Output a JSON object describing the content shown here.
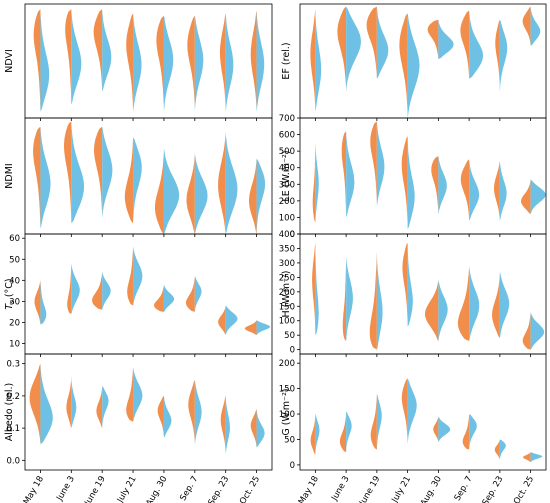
{
  "chart_data": [
    {
      "id": "ndvi",
      "type": "violin-split",
      "ylabel": "NDVI",
      "ylim": [
        0.1,
        0.97
      ],
      "yticks": [],
      "col": 0,
      "row": 0,
      "categories": [
        "May 18",
        "June 3",
        "June 19",
        "July 21",
        "Aug. 30",
        "Sep. 7",
        "Sep. 23",
        "Oct. 25"
      ],
      "series": [
        {
          "color": "#f28e4c",
          "modes": [
            0.8,
            0.85,
            0.8,
            0.7,
            0.75,
            0.7,
            0.62,
            0.6
          ],
          "min": [
            0.15,
            0.2,
            0.3,
            0.15,
            0.15,
            0.15,
            0.15,
            0.15
          ],
          "max": [
            0.93,
            0.93,
            0.93,
            0.9,
            0.88,
            0.88,
            0.9,
            0.92
          ],
          "width": [
            0.5,
            0.5,
            0.6,
            0.45,
            0.55,
            0.5,
            0.35,
            0.35
          ]
        },
        {
          "color": "#6ec1e4",
          "modes": [
            0.4,
            0.5,
            0.55,
            0.5,
            0.55,
            0.55,
            0.5,
            0.5
          ],
          "min": [
            0.15,
            0.2,
            0.3,
            0.15,
            0.15,
            0.15,
            0.15,
            0.15
          ],
          "max": [
            0.93,
            0.93,
            0.93,
            0.9,
            0.88,
            0.88,
            0.9,
            0.92
          ],
          "width": [
            0.55,
            0.6,
            0.55,
            0.5,
            0.55,
            0.5,
            0.45,
            0.45
          ]
        }
      ]
    },
    {
      "id": "ef",
      "type": "violin-split",
      "ylabel": "EF (rel.)",
      "ylim": [
        0.1,
        0.97
      ],
      "yticks": [],
      "col": 1,
      "row": 0,
      "categories": [
        "May 18",
        "June 3",
        "June 19",
        "July 21",
        "Aug. 30",
        "Sep. 7",
        "Sep. 23",
        "Oct. 25"
      ],
      "series": [
        {
          "color": "#f28e4c",
          "modes": [
            0.6,
            0.8,
            0.85,
            0.7,
            0.8,
            0.8,
            0.7,
            0.85
          ],
          "min": [
            0.15,
            0.3,
            0.4,
            0.1,
            0.55,
            0.4,
            0.3,
            0.65
          ],
          "max": [
            0.93,
            0.95,
            0.95,
            0.9,
            0.85,
            0.92,
            0.85,
            0.95
          ],
          "width": [
            0.3,
            0.6,
            0.75,
            0.55,
            0.8,
            0.6,
            0.3,
            0.5
          ]
        },
        {
          "color": "#6ec1e4",
          "modes": [
            0.45,
            0.7,
            0.6,
            0.5,
            0.65,
            0.55,
            0.65,
            0.75
          ],
          "min": [
            0.15,
            0.3,
            0.4,
            0.1,
            0.55,
            0.4,
            0.3,
            0.65
          ],
          "max": [
            0.93,
            0.95,
            0.95,
            0.9,
            0.85,
            0.92,
            0.85,
            0.95
          ],
          "width": [
            0.35,
            0.9,
            0.7,
            0.7,
            0.95,
            0.9,
            0.45,
            0.6
          ]
        }
      ]
    },
    {
      "id": "ndmi",
      "type": "violin-split",
      "ylabel": "NDMI",
      "ylim": [
        -0.3,
        0.78
      ],
      "yticks": [],
      "col": 0,
      "row": 1,
      "categories": [
        "May 18",
        "June 3",
        "June 19",
        "July 21",
        "Aug. 30",
        "Sep. 7",
        "Sep. 23",
        "Oct. 25"
      ],
      "series": [
        {
          "color": "#f28e4c",
          "modes": [
            0.55,
            0.6,
            0.55,
            0.0,
            -0.1,
            0.0,
            0.15,
            0.0
          ],
          "min": [
            -0.25,
            -0.2,
            -0.15,
            -0.2,
            -0.3,
            -0.3,
            -0.3,
            -0.3
          ],
          "max": [
            0.7,
            0.75,
            0.7,
            0.6,
            0.5,
            0.45,
            0.65,
            0.4
          ],
          "width": [
            0.55,
            0.55,
            0.6,
            0.55,
            0.6,
            0.5,
            0.45,
            0.45
          ]
        },
        {
          "color": "#6ec1e4",
          "modes": [
            0.15,
            0.1,
            0.3,
            0.35,
            0.05,
            0.05,
            0.1,
            0.2
          ],
          "min": [
            -0.25,
            -0.2,
            -0.15,
            -0.2,
            -0.3,
            -0.3,
            -0.3,
            -0.3
          ],
          "max": [
            0.7,
            0.75,
            0.7,
            0.6,
            0.5,
            0.45,
            0.65,
            0.4
          ],
          "width": [
            0.6,
            0.8,
            0.6,
            0.55,
            0.9,
            0.75,
            0.7,
            0.55
          ]
        }
      ]
    },
    {
      "id": "le",
      "type": "violin-split",
      "ylabel": "LE (W.m⁻²)",
      "ylim": [
        0,
        700
      ],
      "yticks": [
        0,
        100,
        200,
        300,
        400,
        500,
        600,
        700
      ],
      "col": 1,
      "row": 1,
      "categories": [
        "May 18",
        "June 3",
        "June 19",
        "July 21",
        "Aug. 30",
        "Sep. 7",
        "Sep. 23",
        "Oct. 25"
      ],
      "series": [
        {
          "color": "#f28e4c",
          "modes": [
            150,
            550,
            600,
            450,
            420,
            350,
            280,
            190
          ],
          "min": [
            70,
            100,
            170,
            30,
            120,
            80,
            80,
            120
          ],
          "max": [
            550,
            620,
            680,
            590,
            470,
            450,
            440,
            330
          ],
          "width": [
            0.2,
            0.35,
            0.5,
            0.4,
            0.55,
            0.55,
            0.35,
            0.6
          ]
        },
        {
          "color": "#6ec1e4",
          "modes": [
            300,
            300,
            400,
            200,
            290,
            230,
            240,
            240
          ],
          "min": [
            70,
            100,
            170,
            30,
            120,
            80,
            80,
            120
          ],
          "max": [
            550,
            620,
            680,
            590,
            470,
            450,
            440,
            330
          ],
          "width": [
            0.2,
            0.5,
            0.45,
            0.45,
            0.5,
            0.6,
            0.4,
            0.9
          ]
        }
      ]
    },
    {
      "id": "ts",
      "type": "violin-split",
      "ylabel": "Ts (°C)",
      "ylabel_main": "T",
      "ylabel_sub": "s",
      "ylabel_rest": " (°C)",
      "ylim": [
        5,
        62
      ],
      "yticks": [
        10,
        20,
        30,
        40,
        50,
        60
      ],
      "col": 0,
      "row": 2,
      "categories": [
        "May 18",
        "June 3",
        "June 19",
        "July 21",
        "Aug. 30",
        "Sep. 7",
        "Sep. 23",
        "Oct. 25"
      ],
      "series": [
        {
          "color": "#f28e4c",
          "modes": [
            30,
            26,
            29,
            32,
            27,
            28,
            20,
            17
          ],
          "min": [
            19,
            24,
            26,
            28,
            25,
            25,
            14,
            14
          ],
          "max": [
            40,
            48,
            44,
            56,
            38,
            42,
            28,
            21
          ],
          "width": [
            0.35,
            0.35,
            0.75,
            0.45,
            0.75,
            0.65,
            0.45,
            0.7
          ]
        },
        {
          "color": "#6ec1e4",
          "modes": [
            22,
            35,
            35,
            42,
            31,
            35,
            22,
            18
          ],
          "min": [
            19,
            24,
            26,
            28,
            25,
            25,
            14,
            14
          ],
          "max": [
            40,
            48,
            44,
            56,
            38,
            42,
            28,
            21
          ],
          "width": [
            0.45,
            0.5,
            0.5,
            0.55,
            0.6,
            0.4,
            0.7,
            0.8
          ]
        }
      ]
    },
    {
      "id": "h",
      "type": "violin-split",
      "ylabel": "H (W.m⁻²)",
      "ylim": [
        -15,
        400
      ],
      "yticks": [
        0,
        50,
        100,
        150,
        200,
        250,
        300,
        350,
        400
      ],
      "col": 1,
      "row": 2,
      "categories": [
        "May 18",
        "June 3",
        "June 19",
        "July 21",
        "Aug. 30",
        "Sep. 7",
        "Sep. 23",
        "Oct. 25"
      ],
      "series": [
        {
          "color": "#f28e4c",
          "modes": [
            250,
            50,
            20,
            300,
            120,
            70,
            110,
            20
          ],
          "min": [
            50,
            30,
            0,
            80,
            30,
            30,
            40,
            0
          ],
          "max": [
            370,
            320,
            340,
            370,
            240,
            290,
            270,
            130
          ],
          "width": [
            0.2,
            0.3,
            0.65,
            0.35,
            0.8,
            0.85,
            0.5,
            0.6
          ]
        },
        {
          "color": "#6ec1e4",
          "modes": [
            100,
            180,
            120,
            150,
            140,
            150,
            160,
            60
          ],
          "min": [
            50,
            30,
            0,
            80,
            30,
            30,
            40,
            0
          ],
          "max": [
            370,
            320,
            340,
            370,
            240,
            290,
            270,
            130
          ],
          "width": [
            0.25,
            0.4,
            0.35,
            0.35,
            0.55,
            0.6,
            0.55,
            0.8
          ]
        }
      ]
    },
    {
      "id": "albedo",
      "type": "violin-split",
      "ylabel": "Albedo (rel.)",
      "ylim": [
        -0.03,
        0.33
      ],
      "yticks": [
        0.0,
        0.1,
        0.2,
        0.3
      ],
      "col": 0,
      "row": 3,
      "categories": [
        "May 18",
        "June 3",
        "June 19",
        "July 21",
        "Aug. 30",
        "Sep. 7",
        "Sep. 23",
        "Oct. 25"
      ],
      "series": [
        {
          "color": "#f28e4c",
          "modes": [
            0.2,
            0.16,
            0.15,
            0.14,
            0.16,
            0.18,
            0.13,
            0.11
          ],
          "min": [
            0.05,
            0.1,
            0.1,
            0.12,
            0.07,
            0.05,
            0.02,
            0.04
          ],
          "max": [
            0.3,
            0.26,
            0.23,
            0.29,
            0.2,
            0.25,
            0.2,
            0.16
          ],
          "width": [
            0.65,
            0.3,
            0.35,
            0.55,
            0.4,
            0.4,
            0.3,
            0.35
          ]
        },
        {
          "color": "#6ec1e4",
          "modes": [
            0.12,
            0.16,
            0.19,
            0.2,
            0.12,
            0.15,
            0.1,
            0.08
          ],
          "min": [
            0.05,
            0.1,
            0.1,
            0.12,
            0.07,
            0.05,
            0.02,
            0.04
          ],
          "max": [
            0.3,
            0.26,
            0.23,
            0.29,
            0.2,
            0.25,
            0.2,
            0.16
          ],
          "width": [
            0.8,
            0.3,
            0.4,
            0.55,
            0.45,
            0.4,
            0.25,
            0.5
          ]
        }
      ]
    },
    {
      "id": "g",
      "type": "violin-split",
      "ylabel": "G (W.m⁻²)",
      "ylim": [
        -10,
        218
      ],
      "yticks": [
        0,
        50,
        100,
        150,
        200
      ],
      "col": 1,
      "row": 3,
      "categories": [
        "May 18",
        "June 3",
        "June 19",
        "July 21",
        "Aug. 30",
        "Sep. 7",
        "Sep. 23",
        "Oct. 25"
      ],
      "series": [
        {
          "color": "#f28e4c",
          "modes": [
            45,
            40,
            50,
            140,
            70,
            40,
            30,
            15
          ],
          "min": [
            20,
            25,
            30,
            40,
            45,
            30,
            10,
            5
          ],
          "max": [
            100,
            105,
            140,
            170,
            95,
            100,
            50,
            25
          ],
          "width": [
            0.3,
            0.45,
            0.45,
            0.4,
            0.3,
            0.5,
            0.3,
            0.45
          ]
        },
        {
          "color": "#6ec1e4",
          "modes": [
            70,
            80,
            100,
            120,
            70,
            80,
            40,
            17
          ],
          "min": [
            20,
            25,
            30,
            40,
            45,
            30,
            10,
            5
          ],
          "max": [
            100,
            105,
            140,
            170,
            95,
            100,
            50,
            25
          ],
          "width": [
            0.25,
            0.35,
            0.3,
            0.55,
            0.7,
            0.5,
            0.4,
            0.7
          ]
        }
      ]
    }
  ]
}
